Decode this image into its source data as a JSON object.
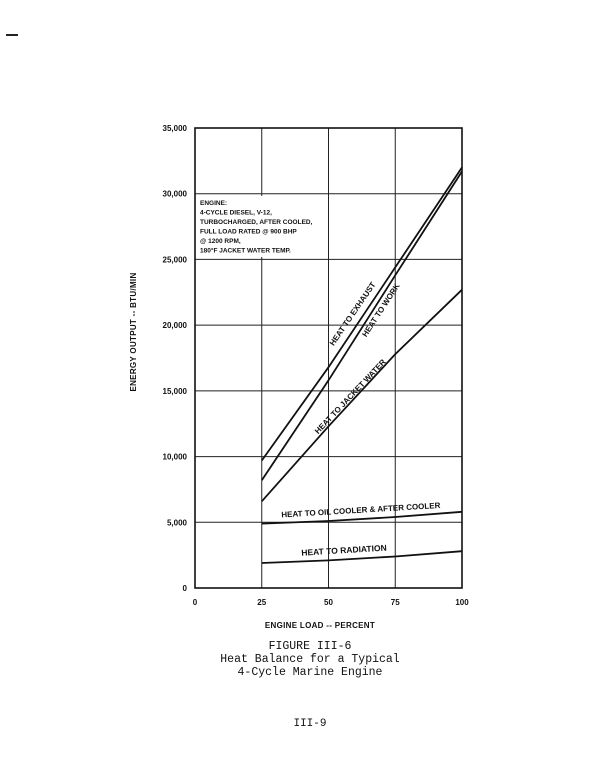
{
  "chart_data": {
    "type": "line",
    "xlabel": "ENGINE LOAD -- PERCENT",
    "ylabel": "ENERGY OUTPUT -- BTU/MIN",
    "xlim": [
      0,
      100
    ],
    "ylim": [
      0,
      35000
    ],
    "xticks": [
      0,
      25,
      50,
      75,
      100
    ],
    "xtick_labels": [
      "0",
      "25",
      "50",
      "75",
      "100"
    ],
    "yticks": [
      0,
      5000,
      10000,
      15000,
      20000,
      25000,
      30000,
      35000
    ],
    "ytick_labels": [
      "0",
      "5,000",
      "10,000",
      "15,000",
      "20,000",
      "25,000",
      "30,000",
      "35,000"
    ],
    "grid": true,
    "note_lines": [
      "ENGINE:",
      "4-CYCLE DIESEL, V-12,",
      "TURBOCHARGED, AFTER COOLED,",
      "FULL LOAD RATED @ 900 BHP",
      "@ 1200 RPM,",
      "180°F JACKET WATER TEMP."
    ],
    "series": [
      {
        "name": "HEAT TO EXHAUST",
        "x": [
          25,
          50,
          75,
          100
        ],
        "y": [
          9700,
          16800,
          24400,
          32000
        ]
      },
      {
        "name": "HEAT TO WORK",
        "x": [
          25,
          50,
          75,
          100
        ],
        "y": [
          8200,
          15800,
          23800,
          31700
        ]
      },
      {
        "name": "HEAT TO JACKET WATER",
        "x": [
          25,
          50,
          75,
          100
        ],
        "y": [
          6600,
          12300,
          17800,
          22700
        ]
      },
      {
        "name": "HEAT TO OIL COOLER & AFTER COOLER",
        "x": [
          25,
          50,
          75,
          100
        ],
        "y": [
          4900,
          5100,
          5400,
          5800
        ]
      },
      {
        "name": "HEAT TO RADIATION",
        "x": [
          25,
          50,
          75,
          100
        ],
        "y": [
          1900,
          2100,
          2400,
          2800
        ]
      }
    ]
  },
  "caption": {
    "line1": "FIGURE III-6",
    "line2": "Heat Balance for a Typical",
    "line3": "4-Cycle Marine Engine"
  },
  "page_number": "III-9"
}
